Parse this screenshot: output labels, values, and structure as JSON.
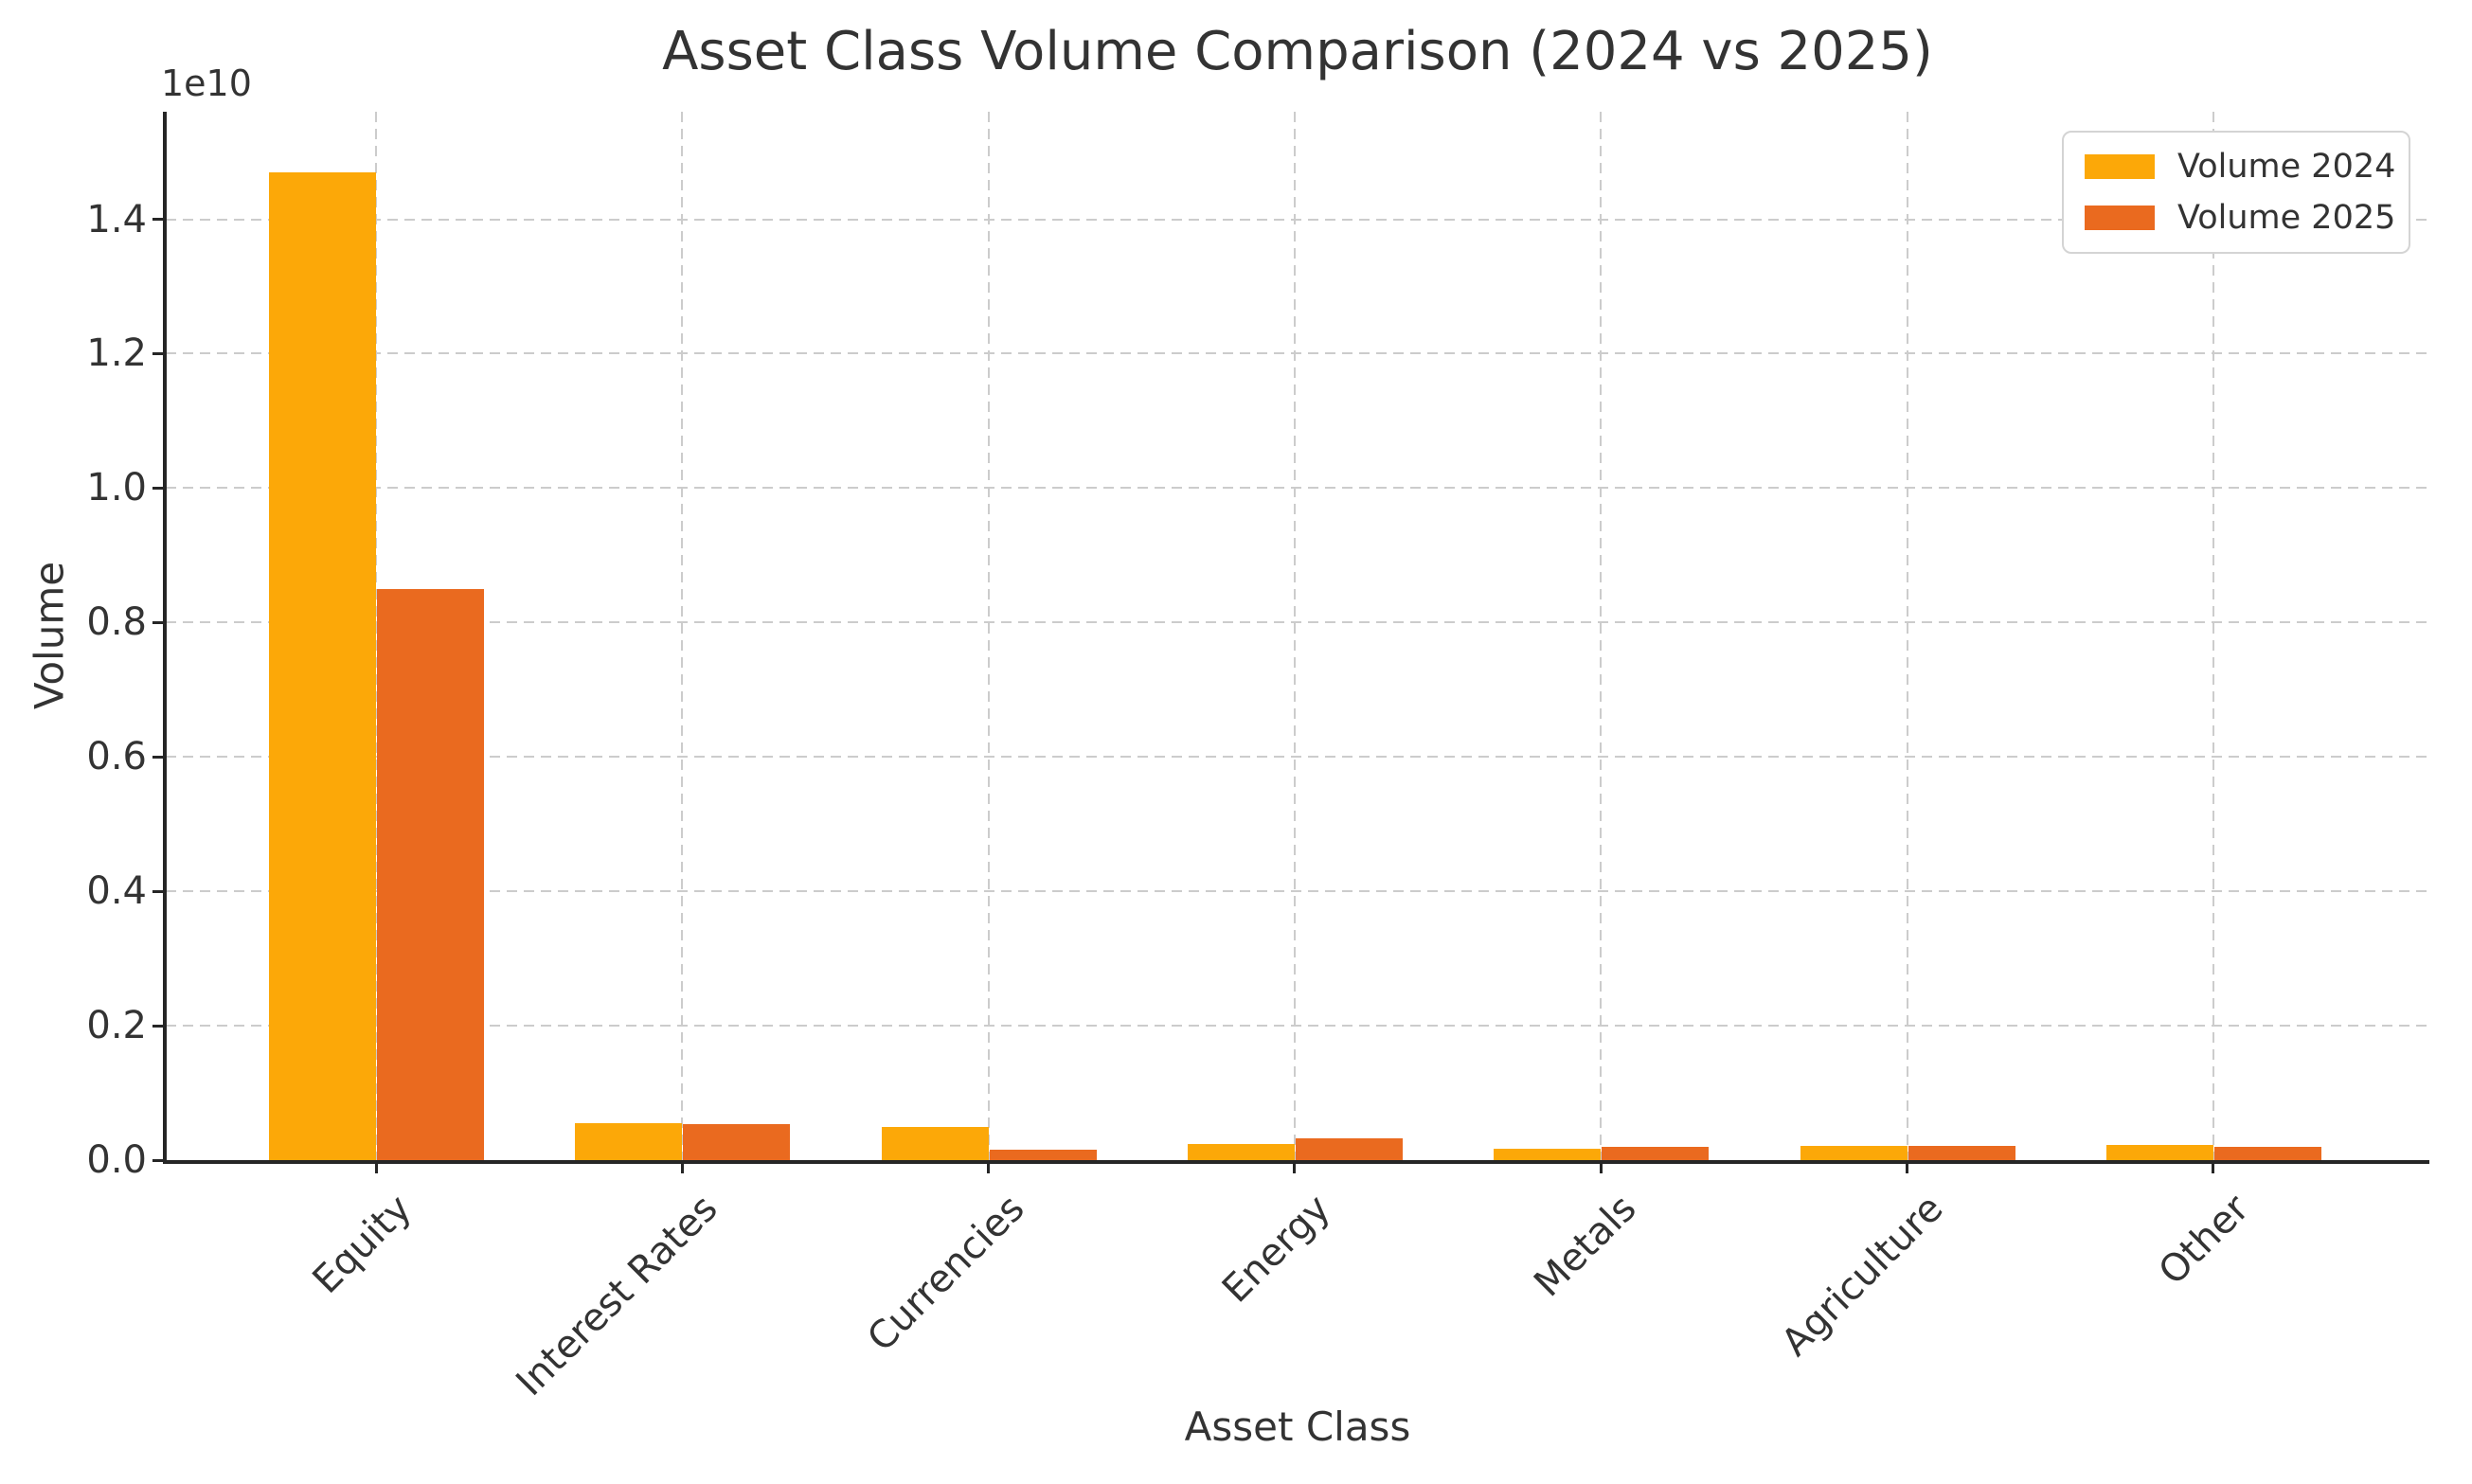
{
  "figure": {
    "background": "#ffffff",
    "text_color": "#333333",
    "spine_color": "#262626"
  },
  "chart_data": {
    "type": "bar",
    "title": "Asset Class Volume Comparison (2024 vs 2025)",
    "xlabel": "Asset Class",
    "ylabel": "Volume",
    "y_offset_text": "1e10",
    "categories": [
      "Equity",
      "Interest Rates",
      "Currencies",
      "Energy",
      "Metals",
      "Agriculture",
      "Other"
    ],
    "series": [
      {
        "name": "Volume 2024",
        "color": "#FCA808",
        "values": [
          14700000000,
          550000000,
          500000000,
          240000000,
          170000000,
          210000000,
          220000000
        ]
      },
      {
        "name": "Volume 2025",
        "color": "#EA6A1F",
        "values": [
          8500000000,
          530000000,
          160000000,
          320000000,
          200000000,
          210000000,
          200000000
        ]
      }
    ],
    "ylim": [
      0,
      15600000000
    ],
    "yticks": [
      0,
      2000000000,
      4000000000,
      6000000000,
      8000000000,
      10000000000,
      12000000000,
      14000000000
    ],
    "ytick_labels": [
      "0.0",
      "0.2",
      "0.4",
      "0.6",
      "0.8",
      "1.0",
      "1.2",
      "1.4"
    ],
    "grid": true,
    "grid_style": "dashed",
    "grid_color": "#cccccc",
    "legend": {
      "position": "upper right",
      "labels": [
        "Volume 2024",
        "Volume 2025"
      ]
    }
  }
}
